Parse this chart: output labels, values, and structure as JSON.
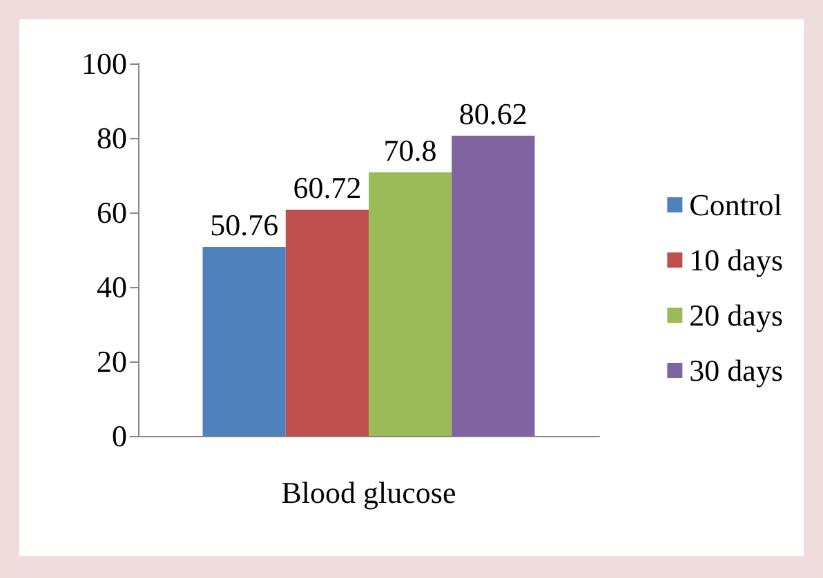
{
  "chart_data": {
    "type": "bar",
    "xlabel": "Blood glucose",
    "categories": [
      null
    ],
    "series": [
      {
        "name": "Control",
        "color": "#4f81bd",
        "values": [
          50.76
        ]
      },
      {
        "name": "10 days",
        "color": "#c0504d",
        "values": [
          60.72
        ]
      },
      {
        "name": "20 days",
        "color": "#9bbb59",
        "values": [
          70.8
        ]
      },
      {
        "name": "30 days",
        "color": "#8064a2",
        "values": [
          80.62
        ]
      }
    ],
    "ylim": [
      0,
      100
    ],
    "yticks": [
      0,
      20,
      40,
      60,
      80,
      100
    ],
    "data_labels": true,
    "legend": "right",
    "grid": false
  }
}
